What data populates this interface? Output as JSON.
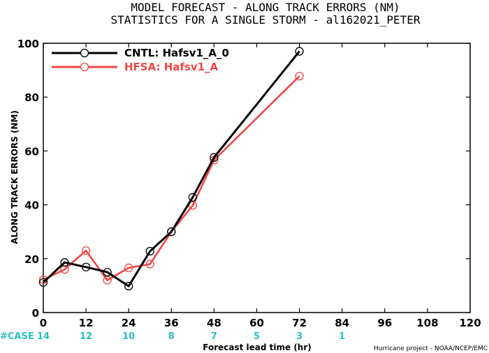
{
  "chart_data": {
    "type": "line",
    "title_line1": "MODEL FORECAST - ALONG TRACK ERRORS (NM)",
    "title_line2": "STATISTICS FOR A SINGLE STORM - al162021_PETER",
    "xlabel": "Forecast lead time (hr)",
    "ylabel": "ALONG TRACK ERRORS (NM)",
    "xlim": [
      0,
      120
    ],
    "ylim": [
      0,
      100
    ],
    "xticks": [
      0,
      12,
      24,
      36,
      48,
      60,
      72,
      84,
      96,
      108,
      120
    ],
    "yticks": [
      0,
      20,
      40,
      60,
      80,
      100
    ],
    "grid": false,
    "legend_position": "top-left",
    "series": [
      {
        "name": "CNTL: Hafsv1_A_0",
        "color": "#000000",
        "x": [
          0,
          6,
          12,
          18,
          24,
          30,
          36,
          42,
          48,
          72
        ],
        "y": [
          11.2,
          18.6,
          16.9,
          15.0,
          9.8,
          22.8,
          30.0,
          42.8,
          57.6,
          97.0
        ]
      },
      {
        "name": "HFSA: Hafsv1_A",
        "color": "#f04646",
        "x": [
          0,
          6,
          12,
          18,
          24,
          30,
          36,
          42,
          48,
          72
        ],
        "y": [
          12.2,
          16.0,
          23.0,
          12.0,
          16.6,
          18.0,
          30.0,
          39.8,
          56.6,
          87.8
        ]
      }
    ],
    "case_counts": {
      "label": "#CASE",
      "x": [
        0,
        12,
        24,
        36,
        48,
        60,
        72,
        84
      ],
      "values": [
        "14",
        "12",
        "10",
        "8",
        "7",
        "5",
        "3",
        "1"
      ]
    },
    "credit": "Hurricane project - NOAA/NCEP/EMC"
  }
}
